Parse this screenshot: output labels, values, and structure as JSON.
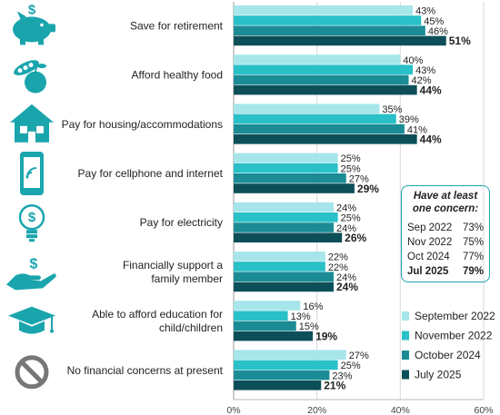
{
  "colors": [
    "#a6e6ea",
    "#29c0c8",
    "#1b8c95",
    "#0d4f59"
  ],
  "icon_color": "#1aa5ad",
  "chart_data": {
    "type": "bar",
    "orientation": "horizontal",
    "categories": [
      [
        "Save for retirement"
      ],
      [
        "Afford healthy food"
      ],
      [
        "Pay for housing/accommodations"
      ],
      [
        "Pay for cellphone and internet"
      ],
      [
        "Pay for electricity"
      ],
      [
        "Financially support a",
        "family member"
      ],
      [
        "Able to afford education for",
        "child/children"
      ],
      [
        "No financial concerns at present"
      ]
    ],
    "icons": [
      "piggy-bank-icon",
      "food-icon",
      "house-icon",
      "cellphone-icon",
      "lightbulb-icon",
      "hand-money-icon",
      "graduation-cap-icon",
      "no-symbol-icon"
    ],
    "series": [
      {
        "name": "September 2022",
        "values": [
          43,
          40,
          35,
          25,
          24,
          22,
          16,
          27
        ]
      },
      {
        "name": "November 2022",
        "values": [
          45,
          43,
          39,
          25,
          25,
          22,
          13,
          25
        ]
      },
      {
        "name": "October 2024",
        "values": [
          46,
          42,
          41,
          27,
          24,
          24,
          15,
          23
        ]
      },
      {
        "name": "July 2025",
        "values": [
          51,
          44,
          44,
          29,
          26,
          24,
          19,
          21
        ]
      }
    ],
    "xlim": [
      0,
      60
    ],
    "xticks": [
      "0%",
      "20%",
      "40%",
      "60%"
    ],
    "value_suffix": "%",
    "legend_placement": "right"
  },
  "concern_box": {
    "title": "Have at least one concern:",
    "rows": [
      {
        "label": "Sep 2022",
        "value": "73%"
      },
      {
        "label": "Nov 2022",
        "value": "75%"
      },
      {
        "label": "Oct 2024",
        "value": "77%"
      },
      {
        "label": "Jul 2025",
        "value": "79%"
      }
    ]
  }
}
